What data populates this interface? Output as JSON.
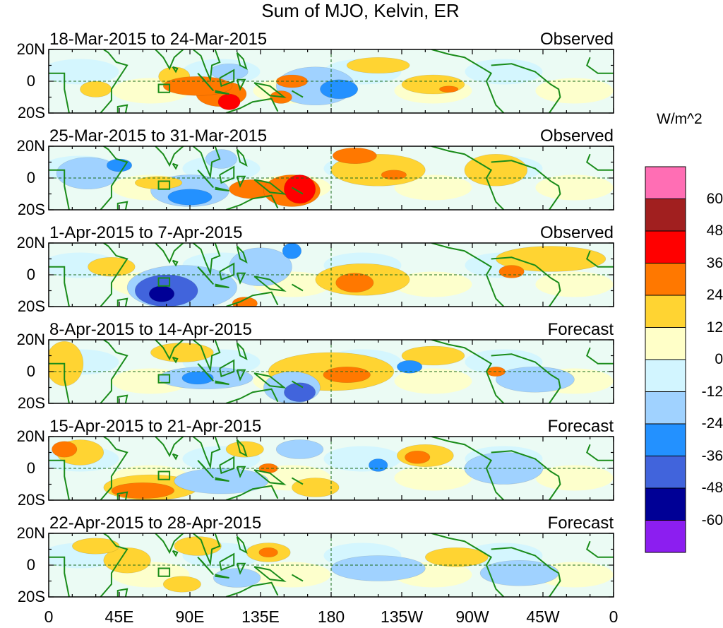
{
  "title": "Sum of MJO, Kelvin, ER",
  "chart_data": {
    "type": "heatmap",
    "title": "Sum of MJO, Kelvin, ER",
    "units": "W/m^2",
    "latitude_ticks": [
      "20N",
      "0",
      "20S"
    ],
    "longitude_ticks": [
      "0",
      "45E",
      "90E",
      "135E",
      "180",
      "135W",
      "90W",
      "45W",
      "0"
    ],
    "colorbar": {
      "levels": [
        "60",
        "48",
        "36",
        "24",
        "12",
        "0",
        "-12",
        "-24",
        "-36",
        "-48",
        "-60"
      ],
      "colors": [
        "#ff6eb4",
        "#a11f1f",
        "#ff0000",
        "#ff7800",
        "#ffd432",
        "#ffffc8",
        "#d2f5ff",
        "#a0d2ff",
        "#2391ff",
        "#4164dc",
        "#000096",
        "#8c1ef0"
      ]
    },
    "panels": [
      {
        "period": "18-Mar-2015 to 24-Mar-2015",
        "type": "Observed",
        "features": [
          {
            "lon": 80,
            "lat": 3,
            "value": 12,
            "rx": 10,
            "ry": 6
          },
          {
            "lon": 95,
            "lat": -3,
            "value": 30,
            "rx": 22,
            "ry": 6
          },
          {
            "lon": 115,
            "lat": -13,
            "value": 40,
            "rx": 7,
            "ry": 5
          },
          {
            "lon": 110,
            "lat": -8,
            "value": 24,
            "rx": 16,
            "ry": 8
          },
          {
            "lon": 155,
            "lat": 0,
            "value": 24,
            "rx": 10,
            "ry": 4
          },
          {
            "lon": 148,
            "lat": -10,
            "value": 24,
            "rx": 7,
            "ry": 4
          },
          {
            "lon": 170,
            "lat": -3,
            "value": -12,
            "rx": 25,
            "ry": 12
          },
          {
            "lon": 185,
            "lat": -5,
            "value": -24,
            "rx": 12,
            "ry": 6
          },
          {
            "lon": 115,
            "lat": 6,
            "value": -12,
            "rx": 12,
            "ry": 5
          },
          {
            "lon": 245,
            "lat": -2,
            "value": 12,
            "rx": 20,
            "ry": 6
          },
          {
            "lon": 255,
            "lat": -5,
            "value": 24,
            "rx": 6,
            "ry": 2
          },
          {
            "lon": 30,
            "lat": -5,
            "value": 12,
            "rx": 10,
            "ry": 5
          },
          {
            "lon": 210,
            "lat": 10,
            "value": 12,
            "rx": 20,
            "ry": 5
          }
        ]
      },
      {
        "period": "25-Mar-2015 to 31-Mar-2015",
        "type": "Observed",
        "features": [
          {
            "lon": 160,
            "lat": -7,
            "value": 45,
            "rx": 10,
            "ry": 9
          },
          {
            "lon": 155,
            "lat": -8,
            "value": 28,
            "rx": 18,
            "ry": 10
          },
          {
            "lon": 130,
            "lat": -7,
            "value": 26,
            "rx": 15,
            "ry": 6
          },
          {
            "lon": 195,
            "lat": 14,
            "value": 28,
            "rx": 14,
            "ry": 5
          },
          {
            "lon": 210,
            "lat": 5,
            "value": 12,
            "rx": 30,
            "ry": 10
          },
          {
            "lon": 220,
            "lat": 2,
            "value": 26,
            "rx": 8,
            "ry": 3
          },
          {
            "lon": 285,
            "lat": 5,
            "value": 12,
            "rx": 20,
            "ry": 10
          },
          {
            "lon": 90,
            "lat": -12,
            "value": -30,
            "rx": 14,
            "ry": 5
          },
          {
            "lon": 90,
            "lat": -8,
            "value": -12,
            "rx": 25,
            "ry": 10
          },
          {
            "lon": 45,
            "lat": 8,
            "value": -24,
            "rx": 8,
            "ry": 4
          },
          {
            "lon": 25,
            "lat": 3,
            "value": -12,
            "rx": 20,
            "ry": 10
          },
          {
            "lon": 110,
            "lat": 12,
            "value": -12,
            "rx": 10,
            "ry": 6
          },
          {
            "lon": 70,
            "lat": -3,
            "value": 12,
            "rx": 15,
            "ry": 4
          }
        ]
      },
      {
        "period": "1-Apr-2015 to 7-Apr-2015",
        "type": "Observed",
        "features": [
          {
            "lon": 72,
            "lat": -12,
            "value": -55,
            "rx": 8,
            "ry": 5
          },
          {
            "lon": 75,
            "lat": -10,
            "value": -38,
            "rx": 20,
            "ry": 10
          },
          {
            "lon": 85,
            "lat": -8,
            "value": -20,
            "rx": 35,
            "ry": 14
          },
          {
            "lon": 155,
            "lat": 15,
            "value": -30,
            "rx": 6,
            "ry": 5
          },
          {
            "lon": 135,
            "lat": 5,
            "value": -12,
            "rx": 20,
            "ry": 12
          },
          {
            "lon": 195,
            "lat": -5,
            "value": 26,
            "rx": 12,
            "ry": 6
          },
          {
            "lon": 200,
            "lat": -3,
            "value": 12,
            "rx": 30,
            "ry": 10
          },
          {
            "lon": 295,
            "lat": 2,
            "value": 26,
            "rx": 8,
            "ry": 4
          },
          {
            "lon": 320,
            "lat": 10,
            "value": 12,
            "rx": 35,
            "ry": 8
          },
          {
            "lon": 40,
            "lat": 5,
            "value": 12,
            "rx": 15,
            "ry": 6
          },
          {
            "lon": 125,
            "lat": -18,
            "value": 24,
            "rx": 8,
            "ry": 4
          }
        ]
      },
      {
        "period": "8-Apr-2015 to 14-Apr-2015",
        "type": "Forecast",
        "features": [
          {
            "lon": 160,
            "lat": -13,
            "value": -42,
            "rx": 10,
            "ry": 6
          },
          {
            "lon": 155,
            "lat": -10,
            "value": -20,
            "rx": 18,
            "ry": 10
          },
          {
            "lon": 190,
            "lat": -2,
            "value": 26,
            "rx": 15,
            "ry": 5
          },
          {
            "lon": 180,
            "lat": 0,
            "value": 12,
            "rx": 40,
            "ry": 12
          },
          {
            "lon": 95,
            "lat": -4,
            "value": -30,
            "rx": 10,
            "ry": 4
          },
          {
            "lon": 100,
            "lat": -4,
            "value": -12,
            "rx": 30,
            "ry": 7
          },
          {
            "lon": 85,
            "lat": 12,
            "value": 12,
            "rx": 20,
            "ry": 6
          },
          {
            "lon": 10,
            "lat": 5,
            "value": 12,
            "rx": 12,
            "ry": 14
          },
          {
            "lon": 230,
            "lat": 3,
            "value": -24,
            "rx": 8,
            "ry": 4
          },
          {
            "lon": 245,
            "lat": 10,
            "value": 12,
            "rx": 20,
            "ry": 6
          },
          {
            "lon": 285,
            "lat": 0,
            "value": 26,
            "rx": 6,
            "ry": 3
          },
          {
            "lon": 310,
            "lat": -5,
            "value": -12,
            "rx": 25,
            "ry": 8
          }
        ]
      },
      {
        "period": "15-Apr-2015 to 21-Apr-2015",
        "type": "Forecast",
        "features": [
          {
            "lon": 60,
            "lat": -14,
            "value": 28,
            "rx": 20,
            "ry": 5
          },
          {
            "lon": 65,
            "lat": -12,
            "value": 12,
            "rx": 30,
            "ry": 8
          },
          {
            "lon": 10,
            "lat": 12,
            "value": 26,
            "rx": 8,
            "ry": 5
          },
          {
            "lon": 20,
            "lat": 10,
            "value": 12,
            "rx": 15,
            "ry": 8
          },
          {
            "lon": 235,
            "lat": 7,
            "value": 26,
            "rx": 8,
            "ry": 4
          },
          {
            "lon": 240,
            "lat": 8,
            "value": 12,
            "rx": 18,
            "ry": 7
          },
          {
            "lon": 210,
            "lat": 2,
            "value": -30,
            "rx": 6,
            "ry": 4
          },
          {
            "lon": 140,
            "lat": 0,
            "value": 26,
            "rx": 6,
            "ry": 3
          },
          {
            "lon": 125,
            "lat": 12,
            "value": 12,
            "rx": 12,
            "ry": 5
          },
          {
            "lon": 110,
            "lat": -8,
            "value": -12,
            "rx": 30,
            "ry": 8
          },
          {
            "lon": 160,
            "lat": 12,
            "value": -12,
            "rx": 15,
            "ry": 6
          },
          {
            "lon": 290,
            "lat": 0,
            "value": -12,
            "rx": 25,
            "ry": 10
          },
          {
            "lon": 170,
            "lat": -12,
            "value": 12,
            "rx": 15,
            "ry": 6
          }
        ]
      },
      {
        "period": "22-Apr-2015 to 28-Apr-2015",
        "type": "Forecast",
        "features": [
          {
            "lon": 140,
            "lat": 8,
            "value": 26,
            "rx": 6,
            "ry": 3
          },
          {
            "lon": 140,
            "lat": 8,
            "value": 12,
            "rx": 14,
            "ry": 6
          },
          {
            "lon": 85,
            "lat": -12,
            "value": 12,
            "rx": 12,
            "ry": 5
          },
          {
            "lon": 95,
            "lat": 12,
            "value": 12,
            "rx": 15,
            "ry": 6
          },
          {
            "lon": 50,
            "lat": 3,
            "value": 12,
            "rx": 15,
            "ry": 8
          },
          {
            "lon": 120,
            "lat": -8,
            "value": -12,
            "rx": 15,
            "ry": 6
          },
          {
            "lon": 210,
            "lat": -2,
            "value": -12,
            "rx": 30,
            "ry": 8
          },
          {
            "lon": 260,
            "lat": 5,
            "value": 12,
            "rx": 20,
            "ry": 6
          },
          {
            "lon": 300,
            "lat": -5,
            "value": -12,
            "rx": 25,
            "ry": 8
          },
          {
            "lon": 30,
            "lat": 12,
            "value": 12,
            "rx": 15,
            "ry": 5
          }
        ]
      }
    ]
  }
}
